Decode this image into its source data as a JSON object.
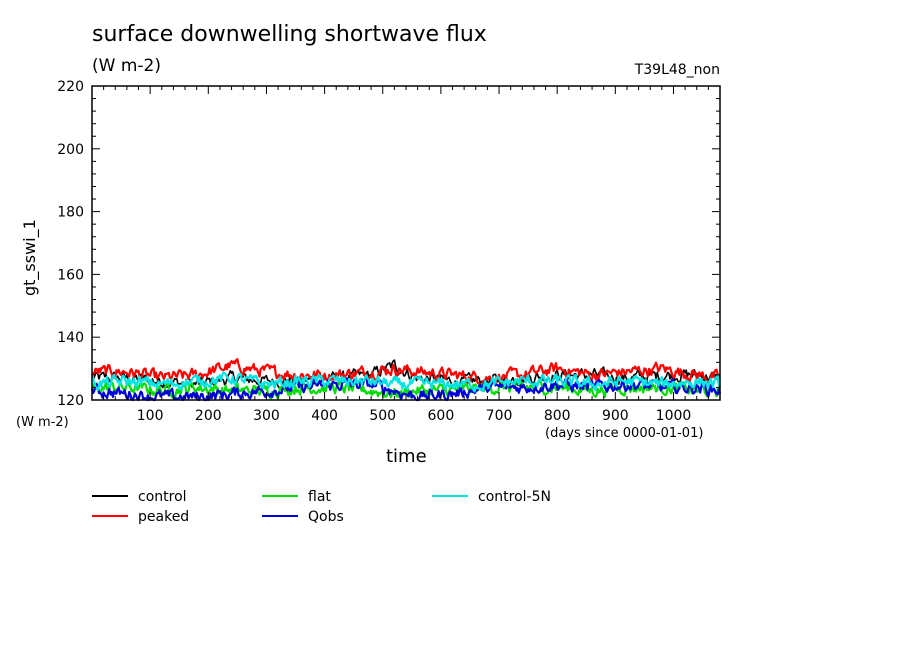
{
  "chart_data": {
    "type": "line",
    "title": "surface downwelling shortwave flux",
    "units": "(W m-2)",
    "run_label": "T39L48_non",
    "ylabel": "gt_sswi_1",
    "ylabel_units": "(W m-2)",
    "xlabel": "time",
    "xlabel_units": "(days since 0000-01-01)",
    "xlim": [
      0,
      1080
    ],
    "ylim": [
      120,
      220
    ],
    "xticks": [
      100,
      200,
      300,
      400,
      500,
      600,
      700,
      800,
      900,
      1000
    ],
    "yticks": [
      120,
      140,
      160,
      180,
      200,
      220
    ],
    "grid": false,
    "legend_position": "bottom",
    "series": [
      {
        "name": "control",
        "color": "#000000",
        "x": [
          0,
          60,
          120,
          180,
          240,
          300,
          360,
          420,
          480,
          520,
          560,
          620,
          680,
          740,
          800,
          860,
          920,
          980,
          1040,
          1080
        ],
        "y": [
          127,
          127,
          126,
          125,
          127,
          126,
          126,
          127,
          128,
          131,
          127,
          126,
          126,
          127,
          128,
          128,
          127,
          128,
          128,
          127
        ]
      },
      {
        "name": "peaked",
        "color": "#ff0000",
        "x": [
          0,
          60,
          120,
          180,
          240,
          300,
          360,
          420,
          480,
          520,
          560,
          620,
          680,
          740,
          800,
          860,
          920,
          980,
          1040,
          1080
        ],
        "y": [
          129,
          129,
          127,
          128,
          131,
          129,
          128,
          128,
          129,
          130,
          129,
          128,
          127,
          128,
          130,
          128,
          129,
          130,
          128,
          127
        ]
      },
      {
        "name": "flat",
        "color": "#00dd00",
        "x": [
          0,
          60,
          120,
          180,
          240,
          300,
          360,
          420,
          480,
          520,
          560,
          620,
          680,
          740,
          800,
          860,
          920,
          980,
          1040,
          1080
        ],
        "y": [
          124,
          124,
          123,
          124,
          123,
          123,
          124,
          124,
          123,
          122,
          123,
          123,
          124,
          124,
          124,
          123,
          124,
          124,
          123,
          123
        ]
      },
      {
        "name": "Qobs",
        "color": "#0000dd",
        "x": [
          0,
          60,
          120,
          180,
          240,
          300,
          360,
          420,
          480,
          520,
          560,
          620,
          680,
          740,
          800,
          860,
          920,
          980,
          1040,
          1080
        ],
        "y": [
          123,
          122,
          121,
          121,
          122,
          123,
          124,
          125,
          125,
          123,
          121,
          122,
          124,
          124,
          125,
          124,
          125,
          124,
          124,
          123
        ]
      },
      {
        "name": "control-5N",
        "color": "#00e5e5",
        "x": [
          0,
          60,
          120,
          180,
          240,
          300,
          360,
          420,
          480,
          520,
          560,
          620,
          680,
          740,
          800,
          860,
          920,
          980,
          1040,
          1080
        ],
        "y": [
          125,
          126,
          125,
          126,
          127,
          125,
          126,
          126,
          126,
          125,
          125,
          125,
          125,
          126,
          126,
          125,
          126,
          125,
          126,
          125
        ]
      }
    ]
  }
}
